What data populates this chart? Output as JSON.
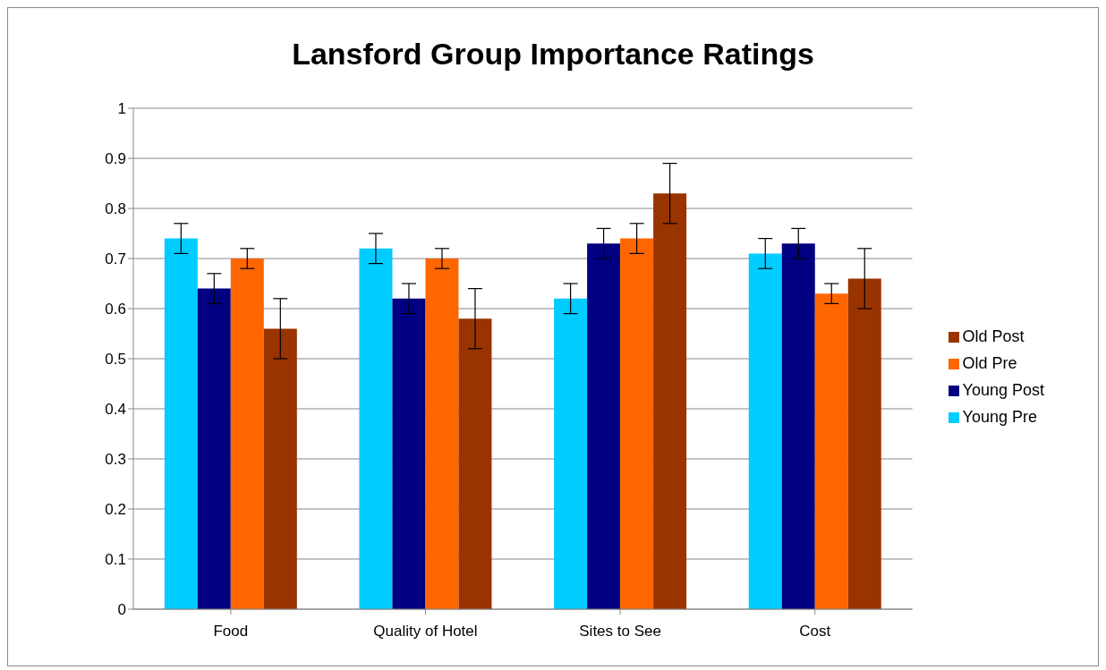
{
  "chart_data": {
    "type": "bar",
    "title": "Lansford Group Importance Ratings",
    "categories": [
      "Food",
      "Quality of Hotel",
      "Sites to See",
      "Cost"
    ],
    "series": [
      {
        "name": "Young Pre",
        "color": "#00ccff",
        "values": [
          0.74,
          0.72,
          0.62,
          0.71
        ],
        "errors": [
          0.03,
          0.03,
          0.03,
          0.03
        ]
      },
      {
        "name": "Young Post",
        "color": "#000080",
        "values": [
          0.64,
          0.62,
          0.73,
          0.73
        ],
        "errors": [
          0.03,
          0.03,
          0.03,
          0.03
        ]
      },
      {
        "name": "Old Pre",
        "color": "#ff6600",
        "values": [
          0.7,
          0.7,
          0.74,
          0.63
        ],
        "errors": [
          0.02,
          0.02,
          0.03,
          0.02
        ]
      },
      {
        "name": "Old Post",
        "color": "#993300",
        "values": [
          0.56,
          0.58,
          0.83,
          0.66
        ],
        "errors": [
          0.06,
          0.06,
          0.06,
          0.06
        ]
      }
    ],
    "ylim": [
      0,
      1
    ],
    "yticks": [
      0,
      0.1,
      0.2,
      0.3,
      0.4,
      0.5,
      0.6,
      0.7,
      0.8,
      0.9,
      1
    ],
    "grid": "y",
    "legend": "right"
  }
}
